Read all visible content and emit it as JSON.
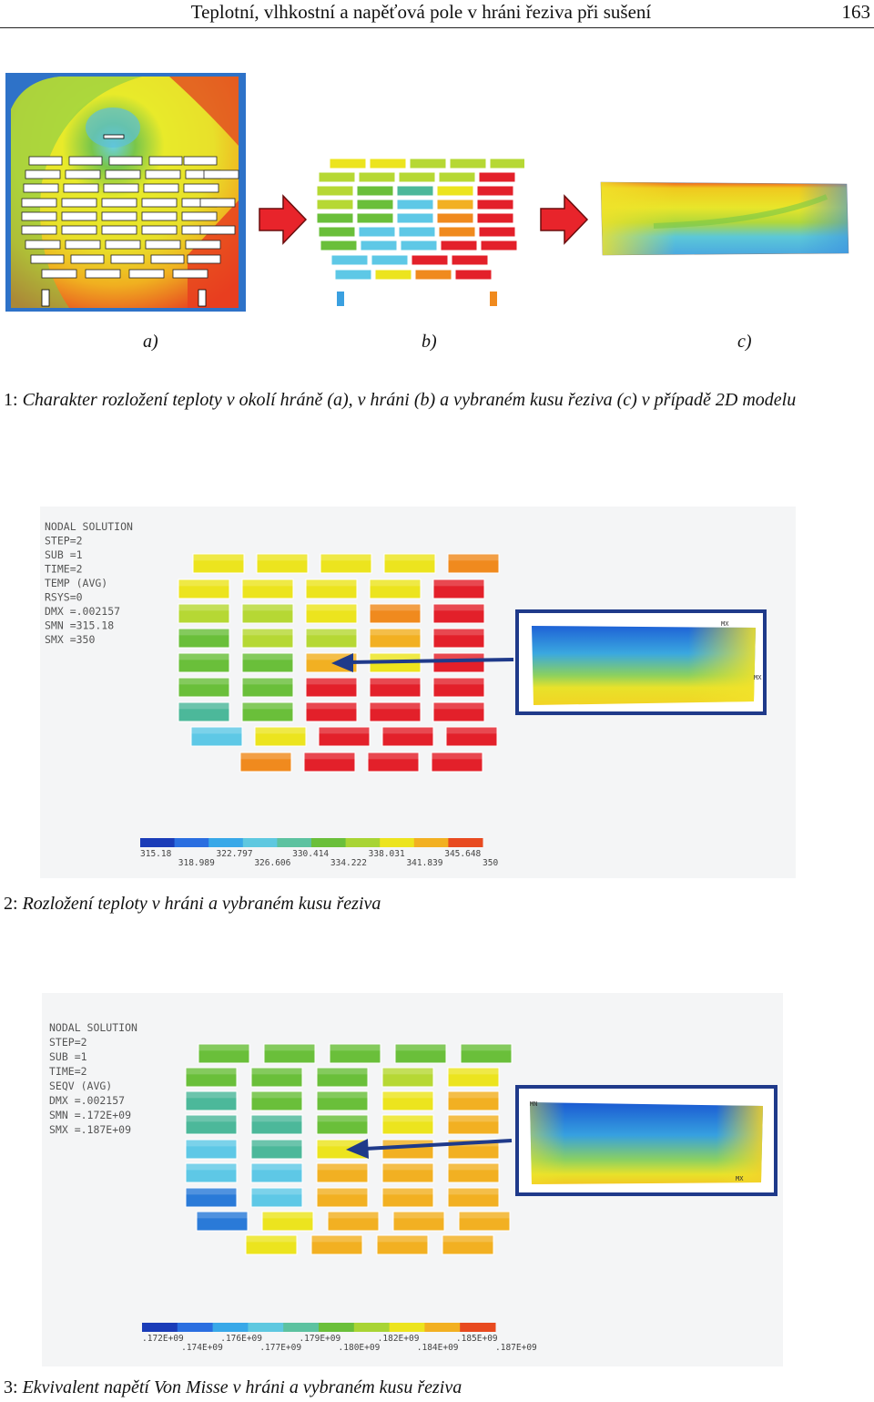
{
  "header": {
    "title": "Teplotní, vlhkostní a napěťová pole v hráni řeziva při sušení",
    "page_number": "163"
  },
  "figure1": {
    "labels": [
      "a)",
      "b)",
      "c)"
    ],
    "caption_number": "1:",
    "caption": "Charakter rozložení teploty v okolí hráně (a), v hráni (b) a vybraném kusu řeziva (c) v případě 2D modelu"
  },
  "figure2": {
    "info_lines": [
      "NODAL SOLUTION",
      "STEP=2",
      "SUB =1",
      "TIME=2",
      "TEMP        (AVG)",
      "RSYS=0",
      "DMX =.002157",
      "SMN =315.18",
      "SMX =350"
    ],
    "legend_top": [
      "315.18",
      "322.797",
      "330.414",
      "338.031",
      "345.648"
    ],
    "legend_bottom": [
      "318.989",
      "326.606",
      "334.222",
      "341.839",
      "350"
    ],
    "marker_mx": "MX",
    "caption_number": "2:",
    "caption": "Rozložení teploty v hráni a vybraném kusu řeziva"
  },
  "figure3": {
    "info_lines": [
      "NODAL SOLUTION",
      "STEP=2",
      "SUB =1",
      "TIME=2",
      "SEQV        (AVG)",
      "DMX =.002157",
      "SMN =.172E+09",
      "SMX =.187E+09"
    ],
    "legend_top": [
      ".172E+09",
      ".176E+09",
      ".179E+09",
      ".182E+09",
      ".185E+09"
    ],
    "legend_bottom": [
      ".174E+09",
      ".177E+09",
      ".180E+09",
      ".184E+09",
      ".187E+09"
    ],
    "marker_mx": "MX",
    "marker_mn": "MN",
    "caption_number": "3:",
    "caption": "Ekvivalent napětí Von Misse v hráni a vybraném kusu řeziva"
  },
  "colors": {
    "arrow_red": "#e8242b",
    "frame_blue": "#1f3a8a",
    "fem_red": "#e3202a",
    "fem_yellow": "#f5e21e",
    "fem_green": "#6abf3a",
    "fem_cyan": "#5ec8e6",
    "fem_blue": "#1a64d8"
  }
}
